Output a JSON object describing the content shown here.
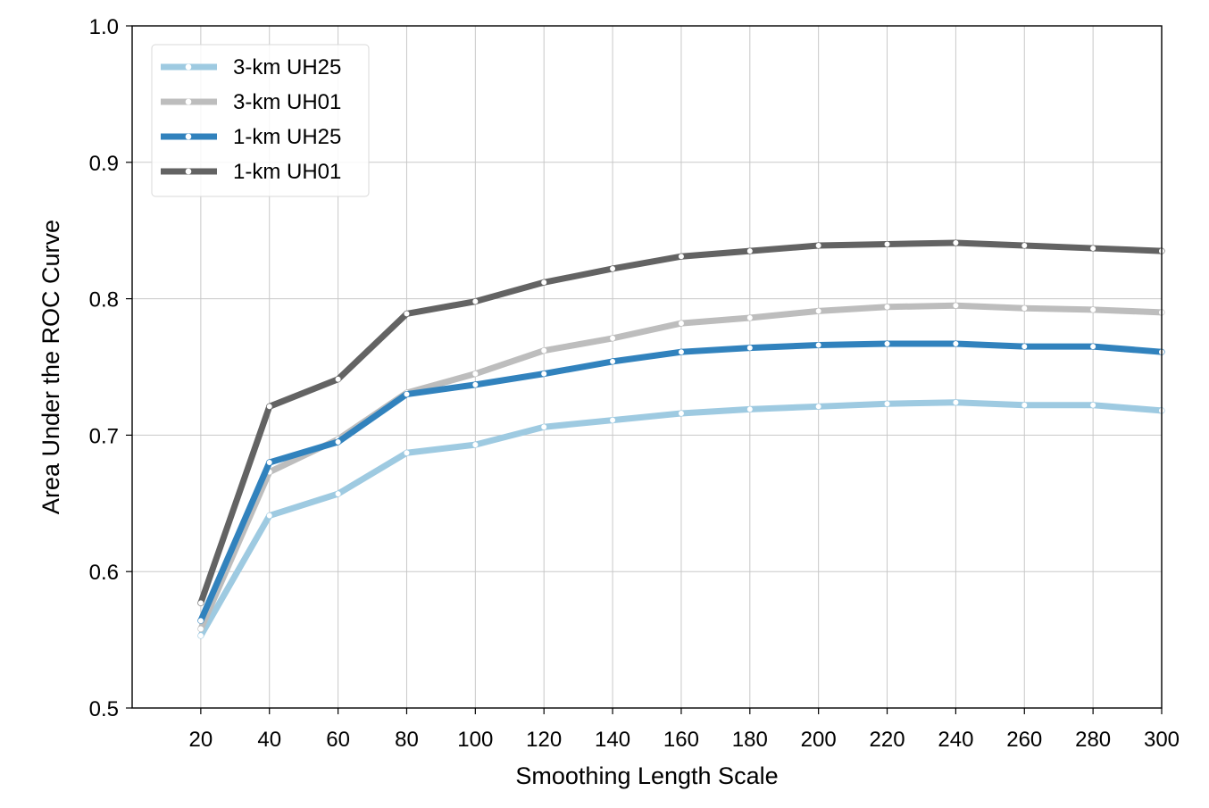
{
  "chart_data": {
    "type": "line",
    "title": "",
    "xlabel": "Smoothing Length Scale",
    "ylabel": "Area Under the ROC Curve",
    "xlim": [
      0,
      300
    ],
    "ylim": [
      0.5,
      1.0
    ],
    "xticks": [
      20,
      40,
      60,
      80,
      100,
      120,
      140,
      160,
      180,
      200,
      220,
      240,
      260,
      280,
      300
    ],
    "yticks": [
      0.5,
      0.6,
      0.7,
      0.8,
      0.9,
      1.0
    ],
    "ytick_labels": [
      "0.5",
      "0.6",
      "0.7",
      "0.8",
      "0.9",
      "1.0"
    ],
    "grid": true,
    "legend_position": "top-left",
    "x": [
      20,
      40,
      60,
      80,
      100,
      120,
      140,
      160,
      180,
      200,
      220,
      240,
      260,
      280,
      300
    ],
    "series": [
      {
        "name": "3-km UH25",
        "color": "#9ecae1",
        "values": [
          0.553,
          0.641,
          0.657,
          0.687,
          0.693,
          0.706,
          0.711,
          0.716,
          0.719,
          0.721,
          0.723,
          0.724,
          0.722,
          0.722,
          0.718
        ]
      },
      {
        "name": "3-km UH01",
        "color": "#bdbdbd",
        "values": [
          0.558,
          0.673,
          0.697,
          0.731,
          0.745,
          0.762,
          0.771,
          0.782,
          0.786,
          0.791,
          0.794,
          0.795,
          0.793,
          0.792,
          0.79
        ]
      },
      {
        "name": "1-km UH25",
        "color": "#3182bd",
        "values": [
          0.564,
          0.68,
          0.695,
          0.73,
          0.737,
          0.745,
          0.754,
          0.761,
          0.764,
          0.766,
          0.767,
          0.767,
          0.765,
          0.765,
          0.761
        ]
      },
      {
        "name": "1-km UH01",
        "color": "#636363",
        "values": [
          0.577,
          0.721,
          0.741,
          0.789,
          0.798,
          0.812,
          0.822,
          0.831,
          0.835,
          0.839,
          0.84,
          0.841,
          0.839,
          0.837,
          0.835
        ]
      }
    ]
  }
}
